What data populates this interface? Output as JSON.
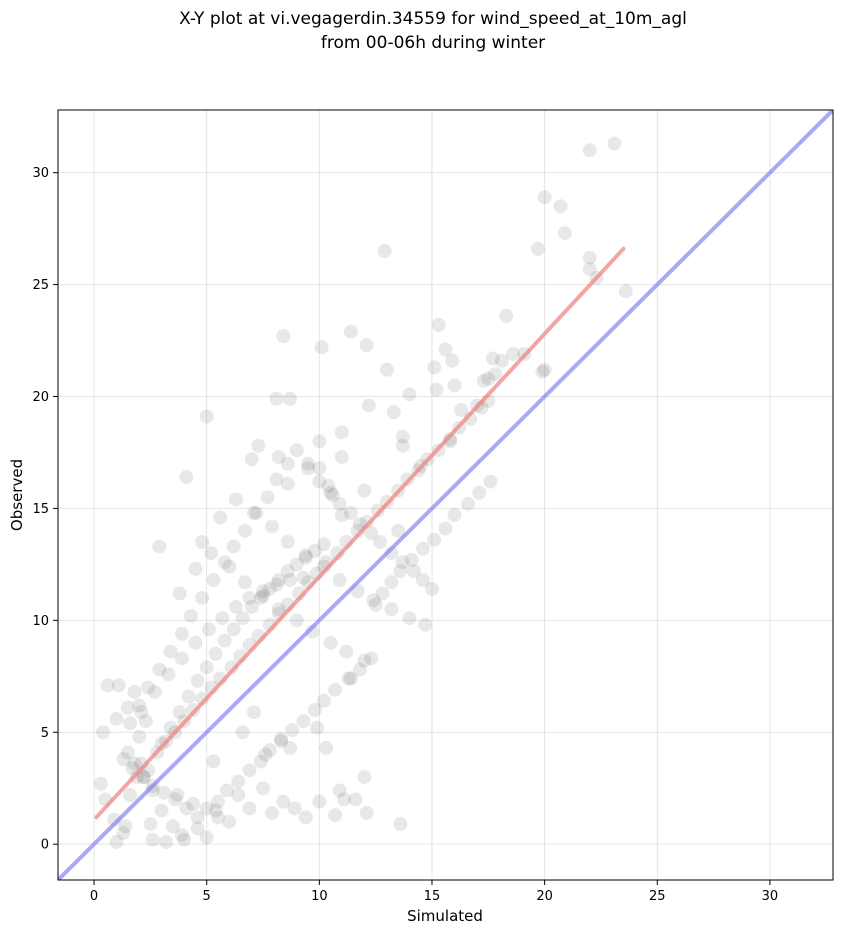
{
  "chart_data": {
    "type": "scatter",
    "title_lines": [
      "X-Y plot at vi.vegagerdin.34559 for wind_speed_at_10m_agl",
      "from 00-06h during winter"
    ],
    "xlabel": "Simulated",
    "ylabel": "Observed",
    "xlim": [
      -1.6,
      32.8
    ],
    "ylim": [
      -1.6,
      32.8
    ],
    "x_ticks": [
      0,
      5,
      10,
      15,
      20,
      25,
      30
    ],
    "y_ticks": [
      0,
      5,
      10,
      15,
      20,
      25,
      30
    ],
    "grid": true,
    "point_color": "#000000",
    "point_opacity": 0.09,
    "fit_line": {
      "x": [
        0.1,
        23.5
      ],
      "y": [
        1.2,
        26.6
      ],
      "color": "#f08080"
    },
    "identity_line": {
      "x": [
        -1.6,
        32.8
      ],
      "y": [
        -1.6,
        32.8
      ],
      "color": "#7b7bef"
    },
    "series": [
      {
        "x": [
          23.1,
          22.0,
          20.0,
          20.7,
          20.9,
          19.7,
          22.0,
          22.0,
          23.6,
          22.3,
          12.9,
          15.3,
          18.3,
          15.6,
          15.9,
          13.0,
          15.1,
          16.0,
          17.7,
          17.8,
          18.1,
          18.6,
          19.1,
          19.9,
          20.0,
          17.5,
          17.3,
          15.2,
          17.0,
          16.3,
          15.8,
          14.5,
          14.0,
          13.7,
          12.1,
          11.4,
          10.1,
          11.0,
          10.0,
          8.4,
          8.1,
          8.7,
          5.0,
          4.1,
          13.3,
          13.7,
          13.5,
          12.2,
          12.0,
          11.0,
          10.6,
          11.0,
          9.5,
          10.0,
          10.4,
          8.2,
          8.6,
          7.0,
          7.3,
          2.9,
          1.0,
          1.3,
          2.6,
          3.2,
          3.5,
          3.9,
          4.0,
          4.6,
          5.0,
          5.4,
          5.5,
          6.0,
          6.4,
          6.9,
          7.5,
          7.9,
          8.4,
          8.9,
          9.4,
          10.0,
          10.7,
          11.1,
          11.6,
          12.1,
          13.6,
          12.0,
          10.9,
          11.4,
          9.9,
          10.3,
          8.7,
          8.3,
          6.6,
          7.1,
          7.6,
          5.3,
          4.4,
          3.7,
          2.4,
          2.0,
          2.3,
          1.5,
          1.8,
          1.1,
          0.6,
          1.0,
          0.4,
          0.3,
          0.5,
          0.9,
          1.4,
          2.5,
          3.0,
          1.6,
          1.9,
          2.1,
          2.8,
          3.2,
          3.6,
          4.0,
          4.4,
          4.8,
          5.2,
          5.6,
          6.1,
          6.5,
          6.9,
          7.3,
          7.8,
          8.2,
          8.6,
          9.1,
          9.5,
          9.9,
          10.3,
          10.8,
          11.2,
          11.7,
          12.1,
          12.6,
          13.0,
          13.5,
          13.9,
          14.4,
          14.8,
          15.3,
          15.8,
          16.2,
          16.7,
          17.2,
          17.5,
          12.5,
          12.8,
          13.2,
          13.6,
          14.1,
          14.6,
          15.1,
          15.6,
          16.0,
          16.6,
          17.1,
          17.6,
          12.3,
          11.8,
          11.3,
          10.7,
          10.2,
          9.8,
          9.3,
          8.8,
          8.3,
          7.8,
          7.4,
          6.9,
          6.4,
          5.9,
          5.5,
          5.0,
          4.6,
          4.1,
          3.6,
          3.1,
          2.6,
          2.2,
          1.7,
          1.3,
          1.6,
          2.0,
          2.4,
          2.9,
          3.4,
          3.9,
          4.3,
          4.8,
          5.3,
          5.8,
          6.2,
          6.7,
          7.2,
          7.7,
          8.1,
          8.6,
          9.0,
          9.5,
          10.0,
          10.5,
          10.9,
          11.4,
          11.8,
          12.3,
          12.7,
          13.2,
          13.7,
          14.2,
          14.6,
          15.0,
          4.8,
          5.6,
          6.3,
          7.1,
          7.9,
          8.6,
          9.4,
          10.2,
          10.9,
          11.7,
          12.4,
          13.2,
          14.0,
          14.7,
          3.8,
          4.5,
          5.2,
          6.0,
          6.7,
          7.5,
          8.2,
          9.0,
          9.7,
          10.5,
          11.2,
          12.0,
          2.1,
          2.7,
          3.3,
          3.9,
          4.5,
          5.1,
          5.7,
          6.3,
          6.9,
          7.5,
          8.1,
          8.7,
          9.3,
          1.5,
          1.8,
          2.2,
          2.6,
          3.0,
          3.4,
          3.8,
          4.2,
          4.6,
          5.0,
          5.4,
          5.8,
          6.2,
          6.6,
          7.0,
          7.4,
          7.8,
          8.2,
          8.6,
          9.0,
          9.4,
          9.8,
          10.2
        ],
        "y": [
          31.3,
          31.0,
          28.9,
          28.5,
          27.3,
          26.6,
          26.2,
          25.7,
          24.7,
          25.3,
          26.5,
          23.2,
          23.6,
          22.1,
          21.6,
          21.2,
          21.3,
          20.5,
          21.7,
          21.0,
          21.6,
          21.9,
          21.9,
          21.1,
          21.2,
          20.8,
          20.7,
          20.3,
          19.6,
          19.4,
          18.0,
          16.9,
          20.1,
          18.2,
          22.3,
          22.9,
          22.2,
          18.4,
          18.0,
          22.7,
          19.9,
          19.9,
          19.1,
          16.4,
          19.3,
          17.8,
          14.0,
          19.6,
          15.8,
          17.3,
          15.6,
          14.7,
          17.0,
          16.8,
          16.0,
          17.3,
          16.1,
          17.2,
          17.8,
          13.3,
          0.1,
          0.5,
          0.2,
          0.1,
          0.8,
          0.4,
          0.2,
          0.7,
          0.3,
          1.5,
          1.2,
          1.0,
          2.2,
          1.6,
          2.5,
          1.4,
          1.9,
          1.6,
          1.2,
          1.9,
          1.3,
          2.0,
          2.0,
          1.4,
          0.9,
          3.0,
          2.4,
          7.4,
          5.2,
          4.3,
          4.3,
          4.7,
          5.0,
          5.9,
          4.0,
          3.7,
          1.8,
          2.2,
          3.3,
          4.8,
          5.5,
          6.1,
          6.8,
          7.1,
          7.1,
          5.6,
          5.0,
          2.7,
          2.0,
          1.1,
          0.8,
          0.9,
          1.5,
          2.2,
          3.0,
          3.6,
          4.1,
          4.6,
          5.0,
          5.5,
          6.0,
          6.5,
          7.0,
          7.4,
          7.9,
          8.4,
          8.9,
          9.3,
          9.8,
          10.3,
          10.7,
          11.2,
          11.7,
          12.1,
          12.6,
          13.0,
          13.5,
          14.0,
          14.4,
          14.9,
          15.3,
          15.8,
          16.3,
          16.7,
          17.2,
          17.6,
          18.1,
          18.6,
          19.0,
          19.5,
          19.8,
          10.7,
          11.2,
          11.7,
          12.2,
          12.7,
          13.2,
          13.6,
          14.1,
          14.7,
          15.2,
          15.7,
          16.2,
          8.3,
          7.8,
          7.4,
          6.9,
          6.4,
          6.0,
          5.5,
          5.1,
          4.6,
          4.2,
          3.7,
          3.3,
          2.8,
          2.4,
          1.9,
          1.6,
          1.2,
          1.6,
          2.0,
          2.3,
          2.6,
          3.0,
          3.4,
          3.8,
          5.4,
          6.2,
          7.0,
          7.8,
          8.6,
          9.4,
          10.2,
          11.0,
          11.8,
          12.6,
          13.3,
          14.0,
          14.8,
          15.5,
          16.3,
          17.0,
          17.6,
          16.8,
          16.2,
          15.7,
          15.2,
          14.8,
          14.3,
          13.9,
          13.5,
          13.0,
          12.6,
          12.2,
          11.8,
          11.4,
          13.5,
          14.6,
          15.4,
          14.8,
          14.2,
          13.5,
          12.9,
          12.4,
          11.8,
          11.3,
          10.9,
          10.5,
          10.1,
          9.8,
          11.2,
          12.3,
          13.0,
          12.4,
          11.7,
          11.1,
          10.5,
          10.0,
          9.5,
          9.0,
          8.6,
          8.2,
          5.9,
          6.8,
          7.6,
          8.3,
          9.0,
          9.6,
          10.1,
          10.6,
          11.0,
          11.3,
          11.6,
          11.8,
          11.9,
          4.1,
          3.6,
          3.0,
          2.4,
          4.5,
          5.2,
          5.9,
          6.6,
          7.3,
          7.9,
          8.5,
          9.1,
          9.6,
          10.1,
          10.6,
          11.0,
          11.4,
          11.8,
          12.2,
          12.5,
          12.8,
          13.1,
          13.4
        ]
      }
    ]
  }
}
